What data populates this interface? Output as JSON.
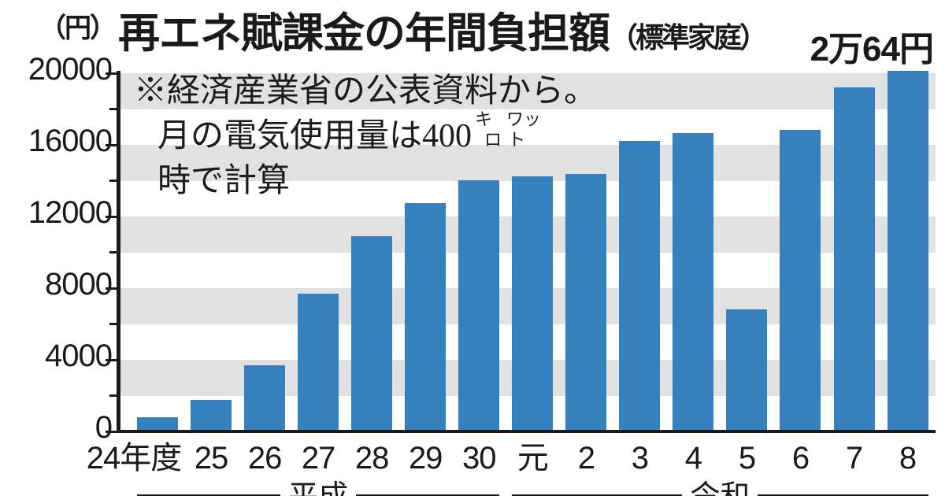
{
  "chart_data": {
    "type": "bar",
    "title": "再エネ賦課金の年間負担額",
    "title_suffix": "（標準家庭）",
    "unit_label": "（円）",
    "peak_value_label": "2万64円",
    "note": {
      "line1": "※経済産業省の公表資料から。",
      "line2_prefix": "月の電気使用量は400",
      "unit_stack": {
        "col1_top": "キ",
        "col1_bottom": "ロ",
        "col2_top": "ワッ",
        "col2_bottom": "ト"
      },
      "line3": "時で計算"
    },
    "categories": [
      "24年度",
      "25",
      "26",
      "27",
      "28",
      "29",
      "30",
      "元",
      "2",
      "3",
      "4",
      "5",
      "6",
      "7",
      "8"
    ],
    "values": [
      700,
      1680,
      3600,
      7584,
      10800,
      12672,
      13920,
      14160,
      14304,
      16128,
      16560,
      6720,
      16752,
      19104,
      20064
    ],
    "era_groups": [
      {
        "label": "平成",
        "from": 0,
        "to": 6
      },
      {
        "label": "令和",
        "from": 7,
        "to": 14
      }
    ],
    "ylabel": "円",
    "ylim": [
      0,
      20000
    ],
    "yticks_labeled": [
      0,
      4000,
      8000,
      12000,
      16000,
      20000
    ],
    "ytick_minor_interval": 2000,
    "gray_bands": [
      [
        2000,
        4000
      ],
      [
        6000,
        8000
      ],
      [
        10000,
        12000
      ],
      [
        14000,
        16000
      ],
      [
        18000,
        20000
      ]
    ],
    "grid": "horizontal-stripes",
    "legend": "none",
    "colors": {
      "bar": "#3580bd",
      "band": "#e1e1e1",
      "axis": "#1a1a1a",
      "text": "#1a1a1a"
    }
  }
}
